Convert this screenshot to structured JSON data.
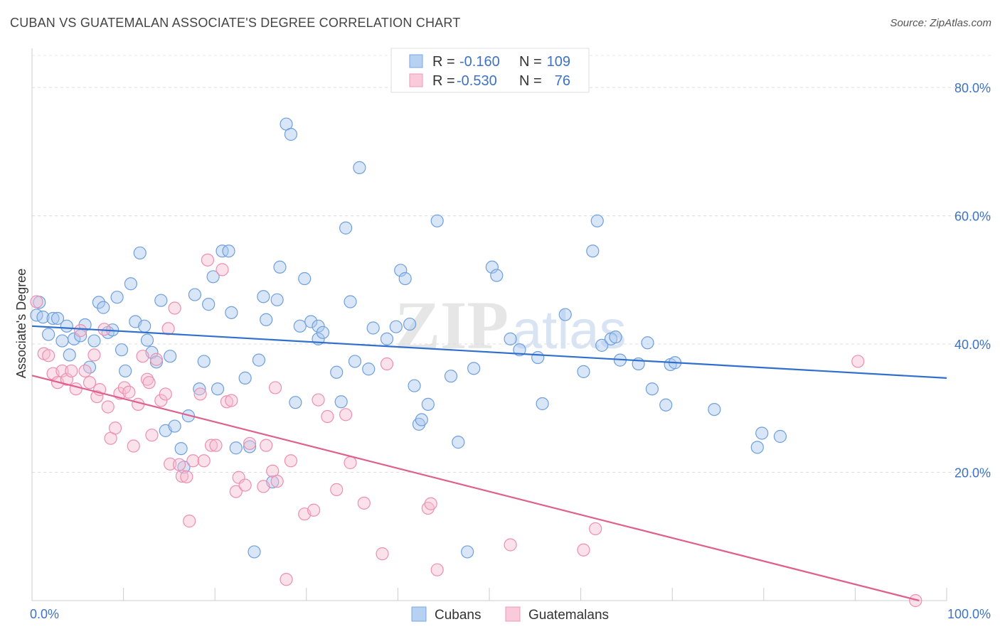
{
  "header": {
    "title": "CUBAN VS GUATEMALAN ASSOCIATE'S DEGREE CORRELATION CHART",
    "source": "Source: ZipAtlas.com"
  },
  "watermark": {
    "text_zip": "ZIP",
    "text_atlas": "atlas"
  },
  "legend": {
    "r_label": "R =",
    "n_label": "N =",
    "rows": [
      {
        "r": "-0.160",
        "n": "109"
      },
      {
        "r": "-0.530",
        "n": "76"
      }
    ]
  },
  "chart_data": {
    "type": "scatter",
    "title": "CUBAN VS GUATEMALAN ASSOCIATE'S DEGREE CORRELATION CHART",
    "xlabel": "",
    "ylabel": "Associate's Degree",
    "xlim": [
      0,
      100
    ],
    "ylim": [
      0,
      85
    ],
    "x_tick_labels": [
      "0.0%",
      "100.0%"
    ],
    "y_ticks": [
      20,
      40,
      60,
      80
    ],
    "y_tick_labels": [
      "20.0%",
      "40.0%",
      "60.0%",
      "80.0%"
    ],
    "grid": "horizontal dashed",
    "legend_position": "top-center",
    "colors": {
      "cubans": "#7aa7e0",
      "guatemalans": "#f09ab7",
      "cuban_line": "#2f6fce",
      "guatemalan_line": "#e0608d"
    },
    "series": [
      {
        "name": "Cubans",
        "r": -0.16,
        "n": 109,
        "trend": [
          [
            0,
            42.8
          ],
          [
            100,
            34.7
          ]
        ],
        "points": [
          [
            0.5,
            44.5
          ],
          [
            0.8,
            46.5
          ],
          [
            1.2,
            44.2
          ],
          [
            1.8,
            41.5
          ],
          [
            2.3,
            44
          ],
          [
            2.8,
            44
          ],
          [
            3.3,
            40.5
          ],
          [
            3.8,
            42.8
          ],
          [
            4.1,
            38.3
          ],
          [
            4.6,
            40.8
          ],
          [
            5.3,
            41.3
          ],
          [
            5.8,
            43
          ],
          [
            6.3,
            36.4
          ],
          [
            6.8,
            40.5
          ],
          [
            7.3,
            46.5
          ],
          [
            7.8,
            45.7
          ],
          [
            8.3,
            41.8
          ],
          [
            8.8,
            42.2
          ],
          [
            9.3,
            47.3
          ],
          [
            9.8,
            39.1
          ],
          [
            10.2,
            35.8
          ],
          [
            10.8,
            49.4
          ],
          [
            11.3,
            43.5
          ],
          [
            11.8,
            54.2
          ],
          [
            12.3,
            42.8
          ],
          [
            12.6,
            40.6
          ],
          [
            13.1,
            38.7
          ],
          [
            13.6,
            37.2
          ],
          [
            14.1,
            46.8
          ],
          [
            14.6,
            26.5
          ],
          [
            15.1,
            38.1
          ],
          [
            15.6,
            27.2
          ],
          [
            16.3,
            23.7
          ],
          [
            16.6,
            20.8
          ],
          [
            17.1,
            28.8
          ],
          [
            17.8,
            47.7
          ],
          [
            18.3,
            33
          ],
          [
            18.8,
            37.3
          ],
          [
            19.3,
            46.2
          ],
          [
            19.8,
            50.5
          ],
          [
            20.3,
            33
          ],
          [
            20.8,
            54.5
          ],
          [
            21.5,
            54.5
          ],
          [
            21.8,
            44.9
          ],
          [
            22.3,
            23.8
          ],
          [
            23.3,
            34.7
          ],
          [
            23.8,
            24
          ],
          [
            24.3,
            7.6
          ],
          [
            24.8,
            37.5
          ],
          [
            25.3,
            47.4
          ],
          [
            25.6,
            43.8
          ],
          [
            26.3,
            18.5
          ],
          [
            26.8,
            46.9
          ],
          [
            27.1,
            52
          ],
          [
            27.8,
            74.3
          ],
          [
            28.3,
            72.7
          ],
          [
            28.8,
            30.9
          ],
          [
            29.3,
            42.8
          ],
          [
            29.8,
            50.2
          ],
          [
            30.5,
            43.5
          ],
          [
            31.3,
            42.8
          ],
          [
            31.3,
            40.8
          ],
          [
            31.8,
            41.8
          ],
          [
            33.3,
            35.6
          ],
          [
            33.8,
            31
          ],
          [
            34.3,
            58.1
          ],
          [
            34.8,
            46.6
          ],
          [
            35.3,
            37.3
          ],
          [
            35.8,
            67.5
          ],
          [
            36.8,
            36.1
          ],
          [
            37.3,
            42.5
          ],
          [
            38.8,
            40.8
          ],
          [
            39.8,
            42.7
          ],
          [
            40.3,
            51.5
          ],
          [
            40.8,
            50.2
          ],
          [
            41.3,
            43.1
          ],
          [
            41.8,
            33.5
          ],
          [
            42.3,
            27.5
          ],
          [
            42.6,
            28.2
          ],
          [
            43.3,
            30.6
          ],
          [
            44.3,
            59.2
          ],
          [
            45.8,
            35
          ],
          [
            46.6,
            24.7
          ],
          [
            47.6,
            7.6
          ],
          [
            48.3,
            36.2
          ],
          [
            50.3,
            52
          ],
          [
            50.8,
            50.7
          ],
          [
            52.3,
            40.8
          ],
          [
            53.3,
            39.1
          ],
          [
            55.3,
            37.9
          ],
          [
            55.8,
            30.7
          ],
          [
            58.3,
            44.6
          ],
          [
            60.3,
            35.7
          ],
          [
            61.3,
            54.5
          ],
          [
            61.8,
            59.2
          ],
          [
            62.3,
            39.8
          ],
          [
            63.3,
            40.8
          ],
          [
            63.8,
            41.1
          ],
          [
            64.3,
            37.5
          ],
          [
            66.3,
            36.9
          ],
          [
            67.3,
            40.2
          ],
          [
            67.8,
            33
          ],
          [
            69.3,
            30.5
          ],
          [
            69.8,
            36.8
          ],
          [
            70.3,
            37.1
          ],
          [
            74.6,
            29.8
          ],
          [
            79.3,
            23.9
          ],
          [
            79.8,
            26.1
          ],
          [
            81.8,
            25.6
          ]
        ]
      },
      {
        "name": "Guatemalans",
        "r": -0.53,
        "n": 76,
        "trend": [
          [
            0,
            35.1
          ],
          [
            97,
            0
          ]
        ],
        "points": [
          [
            0.5,
            46.6
          ],
          [
            1.3,
            38.5
          ],
          [
            1.8,
            38.2
          ],
          [
            2.3,
            35.4
          ],
          [
            2.8,
            34
          ],
          [
            3.3,
            35.8
          ],
          [
            3.8,
            34.5
          ],
          [
            4.3,
            35.8
          ],
          [
            4.8,
            33
          ],
          [
            5.3,
            42.1
          ],
          [
            5.8,
            35.8
          ],
          [
            6.3,
            34
          ],
          [
            6.8,
            38.3
          ],
          [
            7.1,
            31.8
          ],
          [
            7.4,
            32.9
          ],
          [
            7.9,
            42.3
          ],
          [
            8.3,
            30.2
          ],
          [
            8.6,
            25.3
          ],
          [
            9.1,
            26.9
          ],
          [
            9.6,
            32.3
          ],
          [
            10.1,
            33.2
          ],
          [
            10.6,
            32.5
          ],
          [
            11.1,
            24.1
          ],
          [
            11.6,
            30.6
          ],
          [
            12.1,
            38.1
          ],
          [
            12.6,
            34.5
          ],
          [
            12.8,
            34
          ],
          [
            13.1,
            25.8
          ],
          [
            13.6,
            37.6
          ],
          [
            14.1,
            31.2
          ],
          [
            14.6,
            32.2
          ],
          [
            14.9,
            42.4
          ],
          [
            15.1,
            21.3
          ],
          [
            15.6,
            45.6
          ],
          [
            16.1,
            21.2
          ],
          [
            16.4,
            19.4
          ],
          [
            16.9,
            19.3
          ],
          [
            17.2,
            12.4
          ],
          [
            17.6,
            21.8
          ],
          [
            18.4,
            32.2
          ],
          [
            18.8,
            21.8
          ],
          [
            19.2,
            53.1
          ],
          [
            19.6,
            24.2
          ],
          [
            20.1,
            24.2
          ],
          [
            20.8,
            51.6
          ],
          [
            21.3,
            31
          ],
          [
            21.8,
            31.2
          ],
          [
            22.3,
            17
          ],
          [
            22.6,
            19.2
          ],
          [
            23.3,
            18
          ],
          [
            23.8,
            24.5
          ],
          [
            25.3,
            17.8
          ],
          [
            25.6,
            24.2
          ],
          [
            26.3,
            20.2
          ],
          [
            26.6,
            33.2
          ],
          [
            26.8,
            18.6
          ],
          [
            27.8,
            3.3
          ],
          [
            28.3,
            21.8
          ],
          [
            29.8,
            13.5
          ],
          [
            30.8,
            14.1
          ],
          [
            31.3,
            31.3
          ],
          [
            32.3,
            28.7
          ],
          [
            33.3,
            17.3
          ],
          [
            34.3,
            29
          ],
          [
            34.8,
            21.5
          ],
          [
            36.3,
            15.2
          ],
          [
            38.3,
            7.3
          ],
          [
            38.8,
            36.9
          ],
          [
            43.3,
            14.4
          ],
          [
            43.6,
            15.1
          ],
          [
            44.3,
            4.8
          ],
          [
            52.3,
            8.7
          ],
          [
            60.3,
            7.9
          ],
          [
            61.6,
            11.2
          ],
          [
            90.3,
            37.3
          ],
          [
            96.6,
            0
          ]
        ]
      }
    ]
  },
  "bottom_legend": {
    "items": [
      "Cubans",
      "Guatemalans"
    ]
  }
}
